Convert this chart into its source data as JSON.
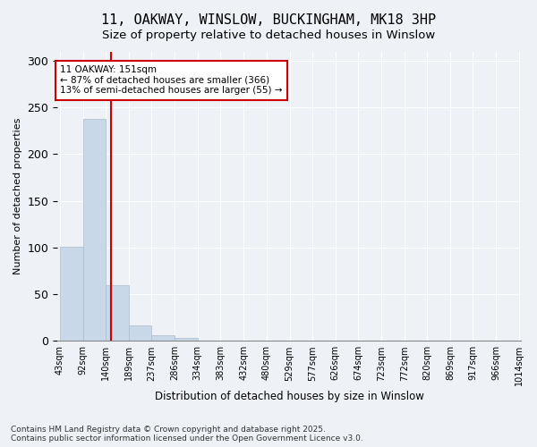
{
  "title_line1": "11, OAKWAY, WINSLOW, BUCKINGHAM, MK18 3HP",
  "title_line2": "Size of property relative to detached houses in Winslow",
  "xlabel": "Distribution of detached houses by size in Winslow",
  "ylabel": "Number of detached properties",
  "bar_edges": [
    43,
    92,
    140,
    189,
    237,
    286,
    334,
    383,
    432,
    480,
    529,
    577,
    626,
    674,
    723,
    772,
    820,
    869,
    917,
    966,
    1014
  ],
  "bar_heights": [
    101,
    238,
    60,
    17,
    6,
    3,
    0,
    0,
    0,
    0,
    0,
    0,
    0,
    0,
    0,
    0,
    0,
    0,
    0,
    0
  ],
  "bar_color": "#c8d8e8",
  "bar_edgecolor": "#aabbcc",
  "property_value": 151,
  "vline_color": "#cc0000",
  "annotation_text": "11 OAKWAY: 151sqm\n← 87% of detached houses are smaller (366)\n13% of semi-detached houses are larger (55) →",
  "annotation_box_edgecolor": "#cc0000",
  "annotation_box_facecolor": "#ffffff",
  "ylim": [
    0,
    310
  ],
  "yticks": [
    0,
    50,
    100,
    150,
    200,
    250,
    300
  ],
  "background_color": "#eef2f7",
  "plot_background": "#eef2f7",
  "footer_text": "Contains HM Land Registry data © Crown copyright and database right 2025.\nContains public sector information licensed under the Open Government Licence v3.0.",
  "tick_label_fontsize": 7,
  "title_fontsize1": 11,
  "title_fontsize2": 9.5,
  "grid_color": "#ffffff"
}
